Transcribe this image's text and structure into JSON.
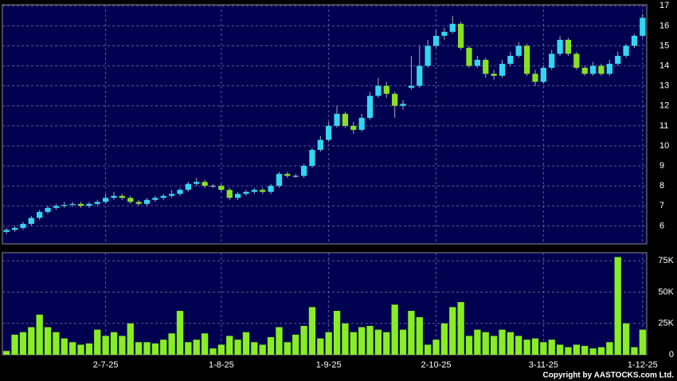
{
  "chart_data": {
    "type": "candlestick",
    "xlim": [
      -0.5,
      77.5
    ],
    "xticks": [
      {
        "value": 12,
        "label": "2-7-25"
      },
      {
        "value": 26,
        "label": "1-8-25"
      },
      {
        "value": 39,
        "label": "1-9-25"
      },
      {
        "value": 52,
        "label": "2-10-25"
      },
      {
        "value": 65,
        "label": "3-11-25"
      },
      {
        "value": 77,
        "label": "1-12-25"
      }
    ],
    "ylim": [
      5.1,
      17.05
    ],
    "yticks": [
      6,
      7,
      8,
      9,
      10,
      11,
      12,
      13,
      14,
      15,
      16,
      17
    ],
    "up_color": "#33d6f0",
    "down_color": "#88e022",
    "open": [
      5.7,
      5.8,
      5.9,
      6.1,
      6.4,
      6.7,
      6.9,
      7.0,
      7.05,
      7.1,
      7.0,
      7.1,
      7.2,
      7.4,
      7.5,
      7.4,
      7.2,
      7.1,
      7.3,
      7.4,
      7.5,
      7.6,
      7.8,
      8.1,
      8.2,
      8.0,
      8.0,
      7.8,
      7.4,
      7.6,
      7.7,
      7.8,
      7.7,
      8.0,
      8.6,
      8.5,
      8.5,
      9.0,
      9.8,
      10.3,
      11.0,
      11.6,
      11.0,
      10.8,
      11.4,
      12.5,
      13.0,
      12.6,
      12.0,
      12.9,
      13.0,
      14.0,
      15.0,
      15.5,
      15.7,
      16.1,
      14.9,
      14.0,
      14.3,
      13.6,
      13.5,
      14.1,
      14.5,
      15.0,
      13.6,
      13.2,
      13.9,
      14.6,
      15.3,
      14.6,
      13.9,
      13.6,
      14.0,
      13.6,
      14.1,
      14.5,
      15.0,
      15.5
    ],
    "high": [
      5.9,
      6.0,
      6.2,
      6.5,
      6.8,
      7.0,
      7.1,
      7.2,
      7.2,
      7.2,
      7.2,
      7.3,
      7.6,
      7.7,
      7.6,
      7.5,
      7.3,
      7.4,
      7.5,
      7.6,
      7.8,
      7.9,
      8.2,
      8.4,
      8.3,
      8.1,
      8.1,
      7.9,
      7.7,
      7.8,
      7.9,
      7.9,
      8.1,
      8.7,
      8.7,
      8.6,
      9.1,
      9.9,
      10.5,
      11.2,
      12.0,
      11.7,
      11.2,
      11.6,
      12.7,
      13.4,
      13.2,
      12.7,
      12.3,
      14.5,
      15.0,
      15.3,
      15.8,
      15.9,
      16.5,
      16.2,
      15.0,
      14.5,
      14.4,
      13.8,
      14.3,
      14.7,
      15.2,
      15.1,
      13.8,
      14.0,
      14.8,
      15.5,
      15.4,
      14.7,
      14.0,
      14.2,
      14.1,
      14.3,
      14.7,
      15.1,
      15.6,
      16.6
    ],
    "low": [
      5.6,
      5.7,
      5.8,
      6.0,
      6.3,
      6.6,
      6.8,
      6.9,
      6.95,
      6.9,
      6.9,
      7.0,
      7.1,
      7.3,
      7.3,
      7.1,
      7.0,
      7.0,
      7.2,
      7.3,
      7.4,
      7.5,
      7.7,
      8.0,
      7.9,
      7.9,
      7.7,
      7.3,
      7.3,
      7.5,
      7.6,
      7.6,
      7.6,
      7.9,
      8.4,
      8.4,
      8.4,
      8.9,
      9.7,
      10.2,
      10.9,
      10.9,
      10.6,
      10.7,
      11.3,
      12.4,
      12.4,
      11.4,
      11.8,
      12.8,
      12.9,
      13.9,
      14.9,
      15.3,
      15.6,
      14.8,
      13.9,
      13.9,
      13.4,
      13.3,
      13.4,
      14.0,
      14.4,
      13.5,
      13.0,
      13.1,
      13.8,
      14.5,
      14.5,
      13.8,
      13.5,
      13.5,
      13.5,
      13.5,
      14.0,
      14.4,
      14.9,
      15.4
    ],
    "close": [
      5.8,
      5.9,
      6.1,
      6.4,
      6.7,
      6.9,
      7.0,
      7.05,
      7.1,
      7.0,
      7.1,
      7.2,
      7.4,
      7.5,
      7.4,
      7.2,
      7.1,
      7.3,
      7.4,
      7.5,
      7.6,
      7.8,
      8.1,
      8.2,
      8.0,
      8.0,
      7.8,
      7.4,
      7.6,
      7.7,
      7.8,
      7.7,
      8.0,
      8.6,
      8.5,
      8.5,
      9.0,
      9.8,
      10.3,
      11.0,
      11.6,
      11.0,
      10.8,
      11.4,
      12.5,
      13.0,
      12.6,
      12.0,
      12.1,
      13.0,
      14.0,
      15.0,
      15.5,
      15.7,
      16.1,
      14.9,
      14.0,
      14.3,
      13.6,
      13.5,
      14.1,
      14.5,
      15.0,
      13.6,
      13.2,
      13.9,
      14.6,
      15.3,
      14.6,
      13.9,
      13.6,
      14.0,
      13.6,
      14.1,
      14.5,
      15.0,
      15.5,
      16.4
    ],
    "volume": {
      "color": "#88ee22",
      "ylim": [
        0,
        81500
      ],
      "yticks": [
        0,
        {
          "value": 25000,
          "label": "25K"
        },
        {
          "value": 50000,
          "label": "50K"
        },
        {
          "value": 75000,
          "label": "75K"
        }
      ],
      "values": [
        3000,
        16000,
        18000,
        22000,
        32000,
        22000,
        18000,
        13000,
        10000,
        8000,
        9000,
        20000,
        15000,
        18000,
        15000,
        25000,
        10000,
        10000,
        9000,
        12000,
        17000,
        35000,
        10000,
        12000,
        17000,
        5000,
        8000,
        15000,
        12000,
        18000,
        10000,
        8000,
        14000,
        22000,
        10000,
        16000,
        23000,
        38000,
        13000,
        18000,
        35000,
        25000,
        18000,
        22000,
        23000,
        20000,
        18000,
        40000,
        20000,
        35000,
        30000,
        8000,
        12000,
        25000,
        38000,
        42000,
        15000,
        20000,
        18000,
        15000,
        20000,
        18000,
        15000,
        12000,
        13000,
        10000,
        12000,
        8000,
        6000,
        8000,
        7000,
        5000,
        6000,
        10000,
        78000,
        25000,
        6000,
        20000
      ]
    },
    "grid": true,
    "copyright": "Copyright by AASTOCKS.com Ltd."
  }
}
